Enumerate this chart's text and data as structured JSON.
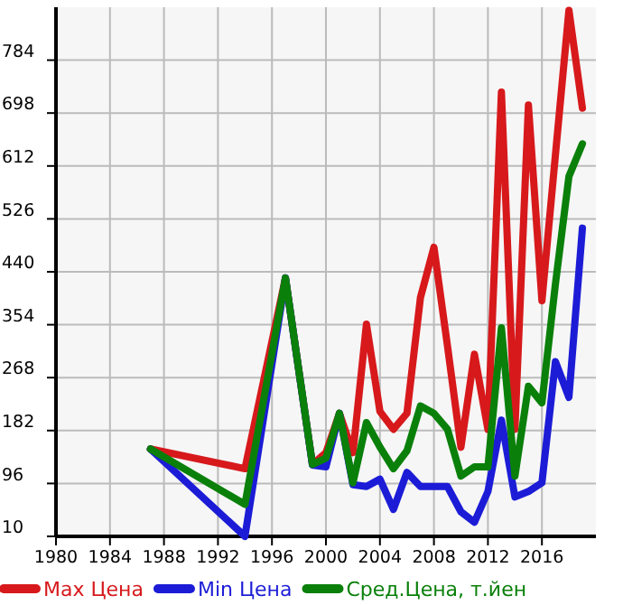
{
  "chart_data": {
    "type": "line",
    "x": [
      1987,
      1994,
      1997,
      1999,
      2000,
      2001,
      2002,
      2003,
      2004,
      2005,
      2006,
      2007,
      2008,
      2009,
      2010,
      2011,
      2012,
      2013,
      2014,
      2015,
      2016,
      2017,
      2018,
      2019
    ],
    "series": [
      {
        "name": "Max Цена",
        "color": "#d7191c",
        "values": [
          152,
          120,
          430,
          127,
          146,
          210,
          146,
          355,
          213,
          184,
          210,
          398,
          480,
          320,
          155,
          306,
          184,
          732,
          184,
          711,
          393,
          630,
          865,
          706
        ]
      },
      {
        "name": "Min Цена",
        "color": "#1c1cd7",
        "values": [
          152,
          10,
          430,
          126,
          123,
          210,
          94,
          91,
          103,
          54,
          114,
          91,
          91,
          91,
          50,
          33,
          83,
          199,
          74,
          83,
          97,
          294,
          236,
          511
        ]
      },
      {
        "name": "Сред.Цена, т.йен",
        "color": "#0a800a",
        "values": [
          152,
          62,
          430,
          127,
          137,
          210,
          97,
          195,
          155,
          120,
          149,
          222,
          210,
          184,
          108,
          123,
          123,
          349,
          108,
          254,
          227,
          420,
          595,
          648
        ]
      }
    ],
    "xlim": [
      1980,
      2020
    ],
    "xticks": [
      1980,
      1984,
      1988,
      1992,
      1996,
      2000,
      2004,
      2008,
      2012,
      2016
    ],
    "ylim": [
      10,
      870
    ],
    "yticks": [
      10,
      96,
      182,
      268,
      354,
      440,
      526,
      612,
      698,
      784
    ],
    "grid": true,
    "legend": "bottom",
    "marker": "none",
    "line_style": "solid"
  }
}
